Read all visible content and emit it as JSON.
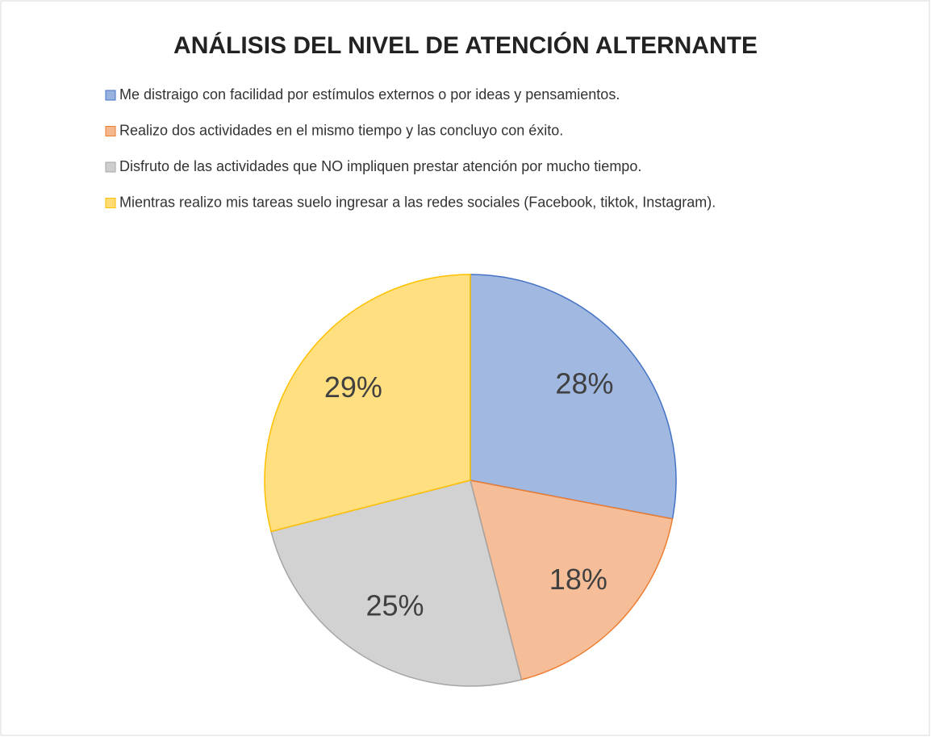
{
  "chart_data": {
    "type": "pie",
    "title": "ANÁLISIS DEL NIVEL DE ATENCIÓN ALTERNANTE",
    "categories": [
      "Me distraigo con facilidad por estímulos externos o por ideas y pensamientos.",
      "Realizo dos actividades en el mismo tiempo y las concluyo con éxito.",
      "Disfruto de las actividades que NO impliquen prestar atención por mucho tiempo.",
      "Mientras realizo mis tareas suelo ingresar a las redes sociales (Facebook, tiktok, Instagram)."
    ],
    "values": [
      28,
      18,
      25,
      29
    ],
    "value_labels": [
      "28%",
      "18%",
      "25%",
      "29%"
    ],
    "colors": [
      "#4472c4",
      "#ed7d31",
      "#a5a5a5",
      "#ffc000"
    ],
    "legend": "top"
  }
}
